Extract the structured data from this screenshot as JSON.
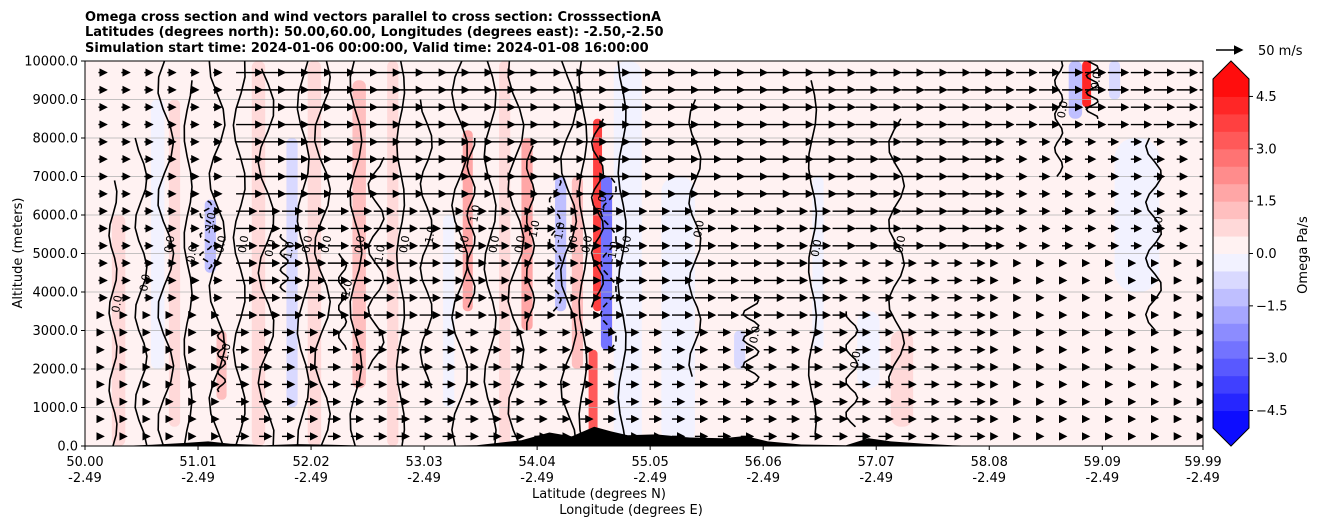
{
  "chart_data": {
    "type": "heatmap",
    "title_lines": [
      "Omega cross section and wind vectors parallel to cross section: CrosssectionA",
      "Latitudes (degrees north): 50.00,60.00, Longitudes (degrees east): -2.50,-2.50",
      "Simulation start time: 2024-01-06 00:00:00, Valid time: 2024-01-08 16:00:00"
    ],
    "ylabel": "Altitude (meters)",
    "xlabel": "Latitude (degrees N)",
    "xlabel2": "Longitude (degrees E)",
    "ylim": [
      0,
      10000
    ],
    "xlim": [
      50.0,
      59.99
    ],
    "y_ticks": [
      {
        "value": 0,
        "label": "0.0"
      },
      {
        "value": 1000,
        "label": "1000.0"
      },
      {
        "value": 2000,
        "label": "2000.0"
      },
      {
        "value": 3000,
        "label": "3000.0"
      },
      {
        "value": 4000,
        "label": "4000.0"
      },
      {
        "value": 5000,
        "label": "5000.0"
      },
      {
        "value": 6000,
        "label": "6000.0"
      },
      {
        "value": 7000,
        "label": "7000.0"
      },
      {
        "value": 8000,
        "label": "8000.0"
      },
      {
        "value": 9000,
        "label": "9000.0"
      },
      {
        "value": 10000,
        "label": "10000.0"
      }
    ],
    "x_ticks": [
      {
        "value": 50.0,
        "lat": "50.00",
        "lon": "-2.49"
      },
      {
        "value": 51.01,
        "lat": "51.01",
        "lon": "-2.49"
      },
      {
        "value": 52.02,
        "lat": "52.02",
        "lon": "-2.49"
      },
      {
        "value": 53.03,
        "lat": "53.03",
        "lon": "-2.49"
      },
      {
        "value": 54.04,
        "lat": "54.04",
        "lon": "-2.49"
      },
      {
        "value": 55.05,
        "lat": "55.05",
        "lon": "-2.49"
      },
      {
        "value": 56.06,
        "lat": "56.06",
        "lon": "-2.49"
      },
      {
        "value": 57.07,
        "lat": "57.07",
        "lon": "-2.49"
      },
      {
        "value": 58.08,
        "lat": "58.08",
        "lon": "-2.49"
      },
      {
        "value": 59.09,
        "lat": "59.09",
        "lon": "-2.49"
      },
      {
        "value": 59.99,
        "lat": "59.99",
        "lon": "-2.49"
      }
    ],
    "grid": true,
    "colorbar": {
      "label": "Omega Pa/s",
      "range": [
        -5.0,
        5.0
      ],
      "levels": 20,
      "ticks": [
        {
          "value": 4.5,
          "label": "4.5"
        },
        {
          "value": 3.0,
          "label": "3.0"
        },
        {
          "value": 1.5,
          "label": "1.5"
        },
        {
          "value": 0.0,
          "label": "0.0"
        },
        {
          "value": -1.5,
          "label": "−1.5"
        },
        {
          "value": -3.0,
          "label": "−3.0"
        },
        {
          "value": -4.5,
          "label": "−4.5"
        }
      ]
    },
    "quiver_key": {
      "label": "50 m/s",
      "speed": 50
    },
    "omega_bands": [
      {
        "lat": 50.3,
        "width": 0.12,
        "value": 0.6,
        "alt_min": 0,
        "alt_max": 6000
      },
      {
        "lat": 50.65,
        "width": 0.12,
        "value": -0.5,
        "alt_min": 2000,
        "alt_max": 9000
      },
      {
        "lat": 50.8,
        "width": 0.1,
        "value": 0.5,
        "alt_min": 500,
        "alt_max": 9000
      },
      {
        "lat": 51.12,
        "width": 0.1,
        "value": -1.2,
        "alt_min": 4500,
        "alt_max": 6400
      },
      {
        "lat": 51.22,
        "width": 0.09,
        "value": 1.4,
        "alt_min": 1200,
        "alt_max": 3000
      },
      {
        "lat": 51.55,
        "width": 0.12,
        "value": 0.8,
        "alt_min": 0,
        "alt_max": 10000
      },
      {
        "lat": 51.85,
        "width": 0.1,
        "value": -0.6,
        "alt_min": 1000,
        "alt_max": 8000
      },
      {
        "lat": 52.05,
        "width": 0.12,
        "value": 0.9,
        "alt_min": 0,
        "alt_max": 10000
      },
      {
        "lat": 52.45,
        "width": 0.12,
        "value": 1.0,
        "alt_min": 1500,
        "alt_max": 9500
      },
      {
        "lat": 52.75,
        "width": 0.1,
        "value": 0.7,
        "alt_min": 0,
        "alt_max": 10000
      },
      {
        "lat": 53.25,
        "width": 0.1,
        "value": -0.5,
        "alt_min": 1000,
        "alt_max": 6000
      },
      {
        "lat": 53.42,
        "width": 0.09,
        "value": 1.5,
        "alt_min": 3500,
        "alt_max": 8200
      },
      {
        "lat": 53.75,
        "width": 0.1,
        "value": 0.8,
        "alt_min": 0,
        "alt_max": 10000
      },
      {
        "lat": 53.95,
        "width": 0.1,
        "value": 1.6,
        "alt_min": 3000,
        "alt_max": 8000
      },
      {
        "lat": 54.25,
        "width": 0.1,
        "value": -1.5,
        "alt_min": 3500,
        "alt_max": 7000
      },
      {
        "lat": 54.4,
        "width": 0.1,
        "value": 1.2,
        "alt_min": 2000,
        "alt_max": 7000
      },
      {
        "lat": 54.58,
        "width": 0.08,
        "value": 3.5,
        "alt_min": 3500,
        "alt_max": 8500
      },
      {
        "lat": 54.66,
        "width": 0.1,
        "value": -2.8,
        "alt_min": 2500,
        "alt_max": 7000
      },
      {
        "lat": 54.54,
        "width": 0.08,
        "value": 3.0,
        "alt_min": 0,
        "alt_max": 2500
      },
      {
        "lat": 54.85,
        "width": 0.25,
        "value": -0.4,
        "alt_min": 0,
        "alt_max": 10000
      },
      {
        "lat": 55.3,
        "width": 0.3,
        "value": -0.3,
        "alt_min": 0,
        "alt_max": 7000
      },
      {
        "lat": 55.6,
        "width": 0.1,
        "value": 0.4,
        "alt_min": 0,
        "alt_max": 9000
      },
      {
        "lat": 55.85,
        "width": 0.1,
        "value": -0.6,
        "alt_min": 2000,
        "alt_max": 3000
      },
      {
        "lat": 56.15,
        "width": 0.4,
        "value": 0.25,
        "alt_min": 0,
        "alt_max": 10000
      },
      {
        "lat": 56.55,
        "width": 0.1,
        "value": -0.5,
        "alt_min": 2500,
        "alt_max": 7000
      },
      {
        "lat": 57.0,
        "width": 0.2,
        "value": -0.3,
        "alt_min": 1500,
        "alt_max": 3500
      },
      {
        "lat": 57.3,
        "width": 0.2,
        "value": 0.5,
        "alt_min": 500,
        "alt_max": 3000
      },
      {
        "lat": 57.7,
        "width": 0.3,
        "value": 0.35,
        "alt_min": 0,
        "alt_max": 2500
      },
      {
        "lat": 58.3,
        "width": 0.5,
        "value": 0.3,
        "alt_min": 0,
        "alt_max": 10000
      },
      {
        "lat": 58.85,
        "width": 0.12,
        "value": -1.2,
        "alt_min": 8500,
        "alt_max": 10000
      },
      {
        "lat": 58.95,
        "width": 0.08,
        "value": 4.0,
        "alt_min": 8800,
        "alt_max": 10000
      },
      {
        "lat": 59.2,
        "width": 0.1,
        "value": -0.8,
        "alt_min": 9000,
        "alt_max": 10000
      },
      {
        "lat": 59.5,
        "width": 0.4,
        "value": 0.2,
        "alt_min": 0,
        "alt_max": 10000
      },
      {
        "lat": 59.4,
        "width": 0.4,
        "value": -0.25,
        "alt_min": 4000,
        "alt_max": 8000
      }
    ],
    "contours": [
      {
        "lat": 50.25,
        "value": "0.0",
        "dashed": false,
        "alt_min": 0,
        "alt_max": 6900
      },
      {
        "lat": 50.5,
        "value": "0.0",
        "dashed": false,
        "alt_min": 0,
        "alt_max": 8000
      },
      {
        "lat": 50.72,
        "value": "0.0",
        "dashed": false,
        "alt_min": 0,
        "alt_max": 10000
      },
      {
        "lat": 50.92,
        "value": "0.0",
        "dashed": false,
        "alt_min": 0,
        "alt_max": 9500
      },
      {
        "lat": 51.08,
        "value": "-1.0",
        "dashed": true,
        "alt_min": 4600,
        "alt_max": 6400
      },
      {
        "lat": 51.18,
        "value": "0.0",
        "dashed": false,
        "alt_min": 0,
        "alt_max": 10000
      },
      {
        "lat": 51.22,
        "value": "1.0",
        "dashed": false,
        "alt_min": 1400,
        "alt_max": 3000
      },
      {
        "lat": 51.38,
        "value": "0.0",
        "dashed": false,
        "alt_min": 0,
        "alt_max": 10000
      },
      {
        "lat": 51.62,
        "value": "0.0",
        "dashed": false,
        "alt_min": 0,
        "alt_max": 9800
      },
      {
        "lat": 51.78,
        "value": "-1.0",
        "dashed": false,
        "alt_min": 4000,
        "alt_max": 5500
      },
      {
        "lat": 51.95,
        "value": "0.0",
        "dashed": false,
        "alt_min": 0,
        "alt_max": 10000
      },
      {
        "lat": 52.12,
        "value": "0.0",
        "dashed": false,
        "alt_min": 0,
        "alt_max": 10000
      },
      {
        "lat": 52.3,
        "value": "-1.0",
        "dashed": false,
        "alt_min": 2500,
        "alt_max": 5000
      },
      {
        "lat": 52.42,
        "value": "0.0",
        "dashed": false,
        "alt_min": 0,
        "alt_max": 10000
      },
      {
        "lat": 52.6,
        "value": "1.0",
        "dashed": false,
        "alt_min": 2000,
        "alt_max": 7500
      },
      {
        "lat": 52.82,
        "value": "0.0",
        "dashed": false,
        "alt_min": 0,
        "alt_max": 10000
      },
      {
        "lat": 53.05,
        "value": "1.0",
        "dashed": false,
        "alt_min": 1500,
        "alt_max": 9000
      },
      {
        "lat": 53.35,
        "value": "0.0",
        "dashed": false,
        "alt_min": 0,
        "alt_max": 10000
      },
      {
        "lat": 53.45,
        "value": "1.0",
        "dashed": false,
        "alt_min": 3600,
        "alt_max": 8000
      },
      {
        "lat": 53.62,
        "value": "0.0",
        "dashed": false,
        "alt_min": 0,
        "alt_max": 10000
      },
      {
        "lat": 53.85,
        "value": "0.0",
        "dashed": false,
        "alt_min": 0,
        "alt_max": 10000
      },
      {
        "lat": 53.98,
        "value": "1.0",
        "dashed": false,
        "alt_min": 3000,
        "alt_max": 7800
      },
      {
        "lat": 54.2,
        "value": "-1.0",
        "dashed": true,
        "alt_min": 3500,
        "alt_max": 7000
      },
      {
        "lat": 54.32,
        "value": "0.0",
        "dashed": false,
        "alt_min": 0,
        "alt_max": 10000
      },
      {
        "lat": 54.45,
        "value": "0.0",
        "dashed": false,
        "alt_min": 0,
        "alt_max": 10000
      },
      {
        "lat": 54.58,
        "value": "1.0",
        "dashed": false,
        "alt_min": 3600,
        "alt_max": 8500
      },
      {
        "lat": 54.68,
        "value": "-1.0",
        "dashed": true,
        "alt_min": 2500,
        "alt_max": 7000
      },
      {
        "lat": 54.8,
        "value": "0.0",
        "dashed": false,
        "alt_min": 0,
        "alt_max": 10000
      },
      {
        "lat": 55.45,
        "value": "0.0",
        "dashed": false,
        "alt_min": 1800,
        "alt_max": 9000
      },
      {
        "lat": 55.95,
        "value": "0.0",
        "dashed": false,
        "alt_min": 1500,
        "alt_max": 3800
      },
      {
        "lat": 56.5,
        "value": "0.0",
        "dashed": false,
        "alt_min": 300,
        "alt_max": 9500
      },
      {
        "lat": 56.85,
        "value": "0.0",
        "dashed": false,
        "alt_min": 500,
        "alt_max": 3500
      },
      {
        "lat": 57.25,
        "value": "0.0",
        "dashed": false,
        "alt_min": 1500,
        "alt_max": 8500
      },
      {
        "lat": 58.7,
        "value": "0.0",
        "dashed": false,
        "alt_min": 7000,
        "alt_max": 10000
      },
      {
        "lat": 59.0,
        "value": "0.0",
        "dashed": false,
        "alt_min": 8500,
        "alt_max": 10000
      },
      {
        "lat": 59.55,
        "value": "0.0",
        "dashed": false,
        "alt_min": 3000,
        "alt_max": 8000
      }
    ],
    "terrain": [
      {
        "lat": 50.0,
        "alt": 0
      },
      {
        "lat": 50.3,
        "alt": 0
      },
      {
        "lat": 50.6,
        "alt": 30
      },
      {
        "lat": 50.9,
        "alt": 80
      },
      {
        "lat": 51.1,
        "alt": 120
      },
      {
        "lat": 51.3,
        "alt": 60
      },
      {
        "lat": 51.6,
        "alt": 20
      },
      {
        "lat": 51.9,
        "alt": 50
      },
      {
        "lat": 52.2,
        "alt": 30
      },
      {
        "lat": 52.5,
        "alt": 10
      },
      {
        "lat": 53.0,
        "alt": 0
      },
      {
        "lat": 53.5,
        "alt": 20
      },
      {
        "lat": 53.9,
        "alt": 150
      },
      {
        "lat": 54.15,
        "alt": 350
      },
      {
        "lat": 54.35,
        "alt": 250
      },
      {
        "lat": 54.55,
        "alt": 500
      },
      {
        "lat": 54.7,
        "alt": 380
      },
      {
        "lat": 54.85,
        "alt": 280
      },
      {
        "lat": 55.1,
        "alt": 300
      },
      {
        "lat": 55.4,
        "alt": 220
      },
      {
        "lat": 55.7,
        "alt": 200
      },
      {
        "lat": 55.9,
        "alt": 260
      },
      {
        "lat": 56.1,
        "alt": 120
      },
      {
        "lat": 56.4,
        "alt": 40
      },
      {
        "lat": 56.8,
        "alt": 20
      },
      {
        "lat": 57.0,
        "alt": 200
      },
      {
        "lat": 57.2,
        "alt": 120
      },
      {
        "lat": 57.5,
        "alt": 60
      },
      {
        "lat": 57.75,
        "alt": 20
      },
      {
        "lat": 58.0,
        "alt": 0
      },
      {
        "lat": 59.99,
        "alt": 0
      }
    ]
  }
}
